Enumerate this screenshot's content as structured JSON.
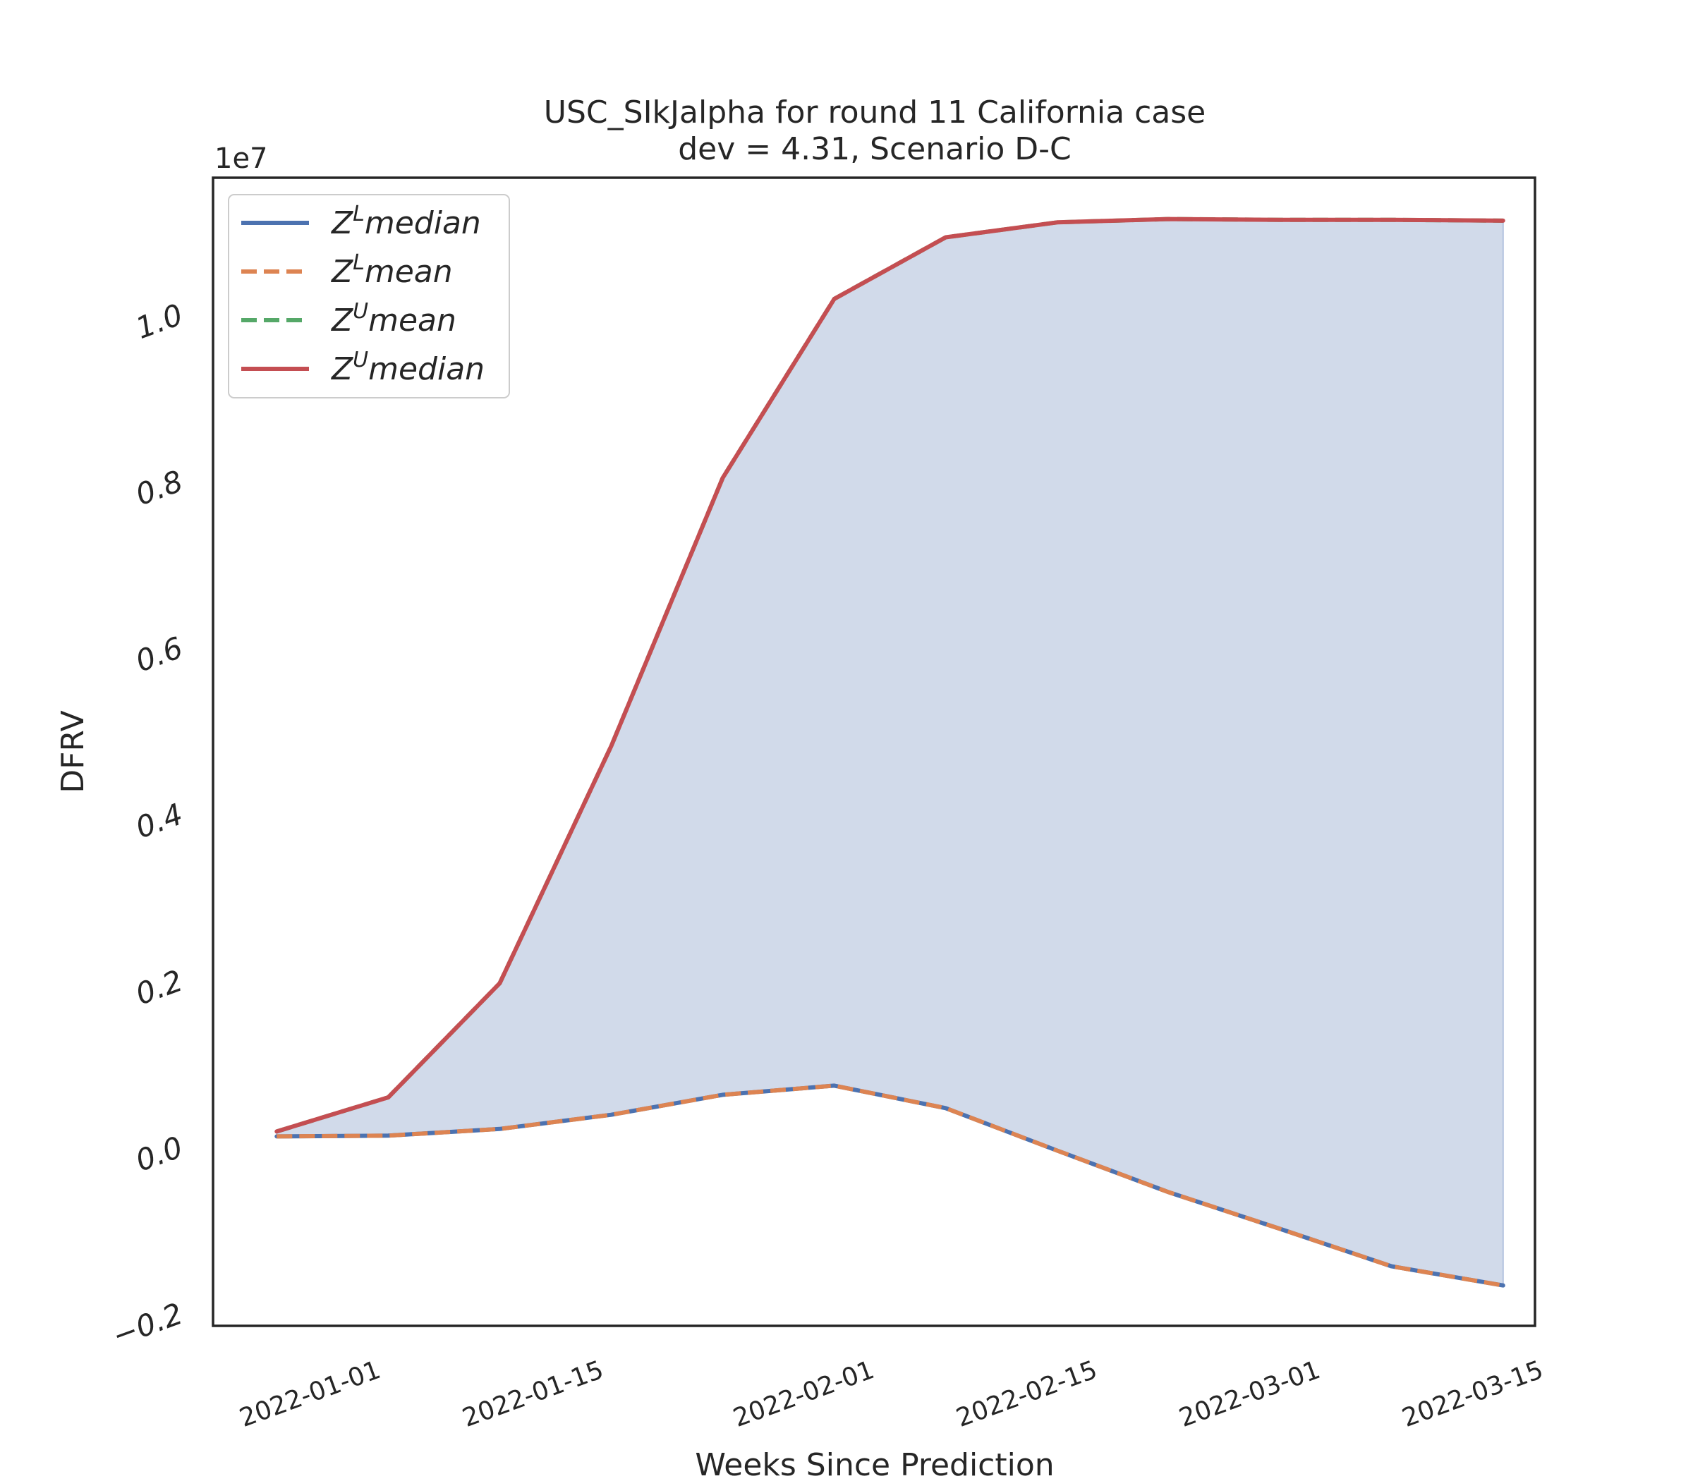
{
  "chart_data": {
    "type": "line",
    "title": "USC_SIkJalpha for round 11 California case",
    "subtitle": "dev = 4.31, Scenario D-C",
    "xlabel": "Weeks Since Prediction",
    "ylabel": "DFRV",
    "y_offset_label": "1e7",
    "y_scale": 10000000,
    "ylim": [
      -0.2165,
      1.1626
    ],
    "xlim": [
      "2021-12-22",
      "2022-03-15"
    ],
    "x_tick_labels": [
      "2022-01-01",
      "2022-01-15",
      "2022-02-01",
      "2022-02-15",
      "2022-03-01",
      "2022-03-15"
    ],
    "y_ticks": [
      -0.2,
      0.0,
      0.2,
      0.4,
      0.6,
      0.8,
      1.0
    ],
    "y_tick_labels": [
      "−0.2",
      "0.0",
      "0.2",
      "0.4",
      "0.6",
      "0.8",
      "1.0"
    ],
    "grid": false,
    "legend_position": "top-left",
    "x": [
      "2021-12-26",
      "2022-01-02",
      "2022-01-09",
      "2022-01-16",
      "2022-01-23",
      "2022-01-30",
      "2022-02-06",
      "2022-02-13",
      "2022-02-20",
      "2022-02-27",
      "2022-03-06",
      "2022-03-13"
    ],
    "series": [
      {
        "name": "median",
        "symbol": "Z",
        "superscript": "L",
        "color": "#4c72b0",
        "style": "solid",
        "values": [
          0.011,
          0.012,
          0.02,
          0.037,
          0.061,
          0.072,
          0.045,
          -0.006,
          -0.056,
          -0.1,
          -0.145,
          -0.168
        ]
      },
      {
        "name": "mean",
        "symbol": "Z",
        "superscript": "L",
        "color": "#dd8452",
        "style": "dashed",
        "values": [
          0.011,
          0.012,
          0.02,
          0.037,
          0.061,
          0.072,
          0.045,
          -0.006,
          -0.056,
          -0.1,
          -0.145,
          -0.168
        ]
      },
      {
        "name": "mean",
        "symbol": "Z",
        "superscript": "U",
        "color": "#55a868",
        "style": "dashed",
        "values": [
          0.017,
          0.058,
          0.195,
          0.48,
          0.802,
          1.017,
          1.091,
          1.109,
          1.113,
          1.112,
          1.112,
          1.111
        ]
      },
      {
        "name": "median",
        "symbol": "Z",
        "superscript": "U",
        "color": "#c44e52",
        "style": "solid",
        "values": [
          0.017,
          0.058,
          0.195,
          0.48,
          0.802,
          1.017,
          1.091,
          1.109,
          1.113,
          1.112,
          1.112,
          1.111
        ]
      }
    ],
    "fill_between": {
      "lower": "Z^L median",
      "upper": "Z^U median",
      "color": "#d1daea"
    }
  }
}
